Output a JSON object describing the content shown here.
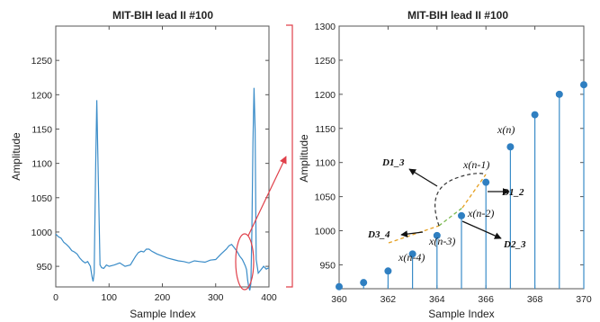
{
  "chart_data": [
    {
      "type": "line",
      "title": "MIT-BIH lead II #100",
      "xlabel": "Sample Index",
      "ylabel": "Amplitude",
      "xlim": [
        0,
        400
      ],
      "ylim": [
        920,
        1300
      ],
      "xticks": [
        0,
        100,
        200,
        300,
        400
      ],
      "yticks": [
        950,
        1000,
        1050,
        1100,
        1150,
        1200,
        1250
      ],
      "grid": false,
      "color": "#3a8cc8",
      "series": [
        {
          "x": [
            0,
            5,
            10,
            15,
            20,
            25,
            30,
            35,
            40,
            45,
            50,
            55,
            60,
            65,
            68,
            70,
            72,
            75,
            77,
            80,
            83,
            86,
            90,
            95,
            100,
            110,
            120,
            130,
            140,
            150,
            155,
            160,
            165,
            170,
            175,
            180,
            185,
            190,
            200,
            210,
            220,
            230,
            240,
            250,
            260,
            270,
            280,
            290,
            300,
            310,
            320,
            325,
            330,
            335,
            340,
            345,
            350,
            353,
            356,
            358,
            360,
            362,
            364,
            366,
            368,
            370,
            372,
            374,
            376,
            380,
            385,
            390,
            395,
            400
          ],
          "y": [
            997,
            993,
            991,
            985,
            982,
            978,
            973,
            971,
            968,
            962,
            958,
            955,
            957,
            950,
            935,
            928,
            940,
            1100,
            1192,
            1070,
            952,
            948,
            947,
            952,
            950,
            952,
            955,
            950,
            952,
            965,
            970,
            972,
            971,
            975,
            975,
            972,
            970,
            968,
            965,
            962,
            960,
            958,
            957,
            955,
            958,
            957,
            956,
            959,
            960,
            968,
            975,
            980,
            982,
            977,
            972,
            965,
            960,
            955,
            950,
            945,
            930,
            920,
            915,
            925,
            1000,
            1130,
            1210,
            1150,
            960,
            940,
            945,
            950,
            946,
            948
          ]
        }
      ]
    },
    {
      "type": "scatter",
      "title": "MIT-BIH lead II #100",
      "xlabel": "Sample Index",
      "ylabel": "Amplitude",
      "xlim": [
        360,
        370
      ],
      "ylim": [
        915,
        1300
      ],
      "xticks": [
        360,
        362,
        364,
        366,
        368,
        370
      ],
      "yticks": [
        950,
        1000,
        1050,
        1100,
        1150,
        1200,
        1250,
        1300
      ],
      "grid": false,
      "style": "stem",
      "color": "#3a8cc8",
      "series": [
        {
          "x": [
            360,
            361,
            362,
            363,
            364,
            365,
            366,
            367,
            368,
            369,
            370
          ],
          "y": [
            918,
            924,
            941,
            966,
            993,
            1022,
            1071,
            1123,
            1170,
            1200,
            1214
          ]
        }
      ],
      "annotations": [
        {
          "text": "x(n)",
          "x": 367
        },
        {
          "text": "x(n-1)",
          "x": 366
        },
        {
          "text": "x(n-2)",
          "x": 365
        },
        {
          "text": "x(n-3)",
          "x": 364
        },
        {
          "text": "x(n-4)",
          "x": 363
        },
        {
          "text": "D1_3"
        },
        {
          "text": "D1_2"
        },
        {
          "text": "D2_3"
        },
        {
          "text": "D3_4"
        }
      ]
    }
  ]
}
